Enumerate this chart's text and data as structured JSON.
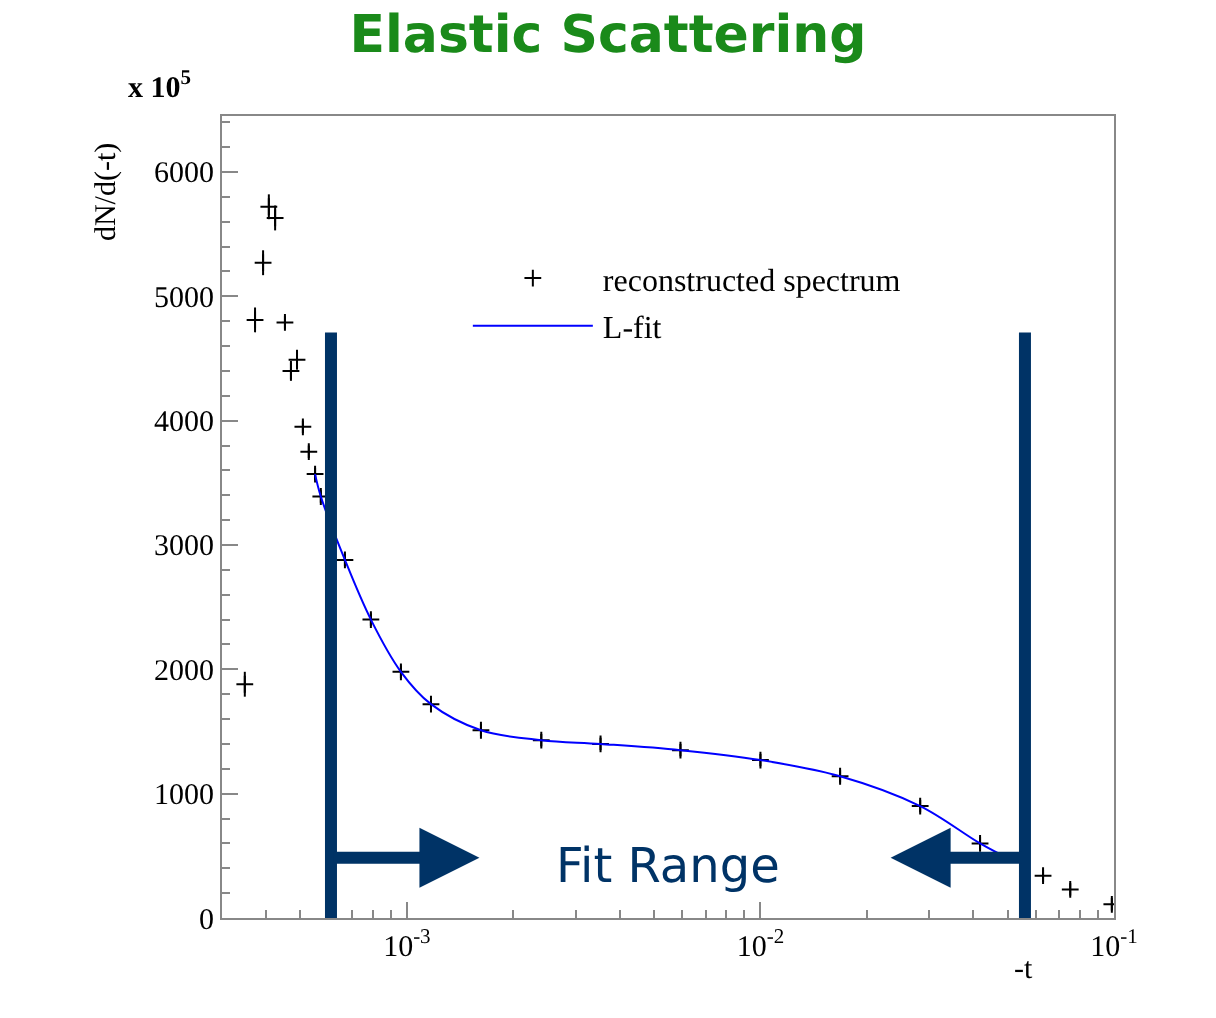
{
  "chart_data": {
    "type": "scatter",
    "title": "Elastic Scattering",
    "xlabel": "-t",
    "ylabel": "dN/d(-t)",
    "log": "x",
    "xlim": [
      0.0003,
      0.1
    ],
    "xticks": [
      {
        "value": 0.001,
        "label": "10$^{-3}$"
      },
      {
        "value": 0.01,
        "label": "10$^{-2}$"
      },
      {
        "value": 0.1,
        "label": "10$^{-1}$"
      }
    ],
    "ylim": [
      0,
      6450
    ],
    "yticks": [
      0,
      1000,
      2000,
      3000,
      4000,
      5000,
      6000
    ],
    "legend": "top right",
    "series": [
      {
        "name": "reconstructed spectrum",
        "marker": "cross",
        "color": "#000000",
        "x": [
          0.000348,
          0.000372,
          0.000392,
          0.000407,
          0.000424,
          0.000452,
          0.00047,
          0.000489,
          0.000508,
          0.000528,
          0.00055,
          0.000571,
          0.000668,
          0.000791,
          0.000962,
          0.00117,
          0.00162,
          0.0024,
          0.00353,
          0.00594,
          0.01,
          0.0168,
          0.0283,
          0.0418,
          0.063,
          0.0752,
          0.0986
        ],
        "values": [
          1880,
          4810,
          5270,
          5720,
          5630,
          4790,
          4400,
          4490,
          3950,
          3750,
          3570,
          3390,
          2880,
          2400,
          1980,
          1720,
          1510,
          1430,
          1400,
          1350,
          1270,
          1140,
          900,
          600,
          340,
          230,
          110
        ],
        "errors": [
          100,
          100,
          100,
          100,
          100,
          50,
          80,
          80,
          50,
          50,
          50,
          50,
          50,
          50,
          50,
          50,
          50,
          50,
          50,
          50,
          50,
          50,
          50,
          50,
          50,
          50,
          50
        ]
      },
      {
        "name": "L-fit",
        "type": "line",
        "color": "#0000ff",
        "x": [
          0.00055,
          0.000571,
          0.000668,
          0.000791,
          0.000962,
          0.00117,
          0.00162,
          0.0024,
          0.00353,
          0.00594,
          0.01,
          0.0168,
          0.0283,
          0.0418,
          0.051
        ],
        "values": [
          3570,
          3390,
          2880,
          2400,
          1980,
          1720,
          1510,
          1430,
          1400,
          1350,
          1270,
          1140,
          900,
          600,
          470
        ]
      }
    ],
    "ref_lines": [
      {
        "axis": "x",
        "value": 0.00061,
        "color": "#003366"
      },
      {
        "axis": "x",
        "value": 0.056,
        "color": "#003366"
      }
    ],
    "annotations": [
      "x 10$^{5}$",
      "Fit Range"
    ]
  }
}
